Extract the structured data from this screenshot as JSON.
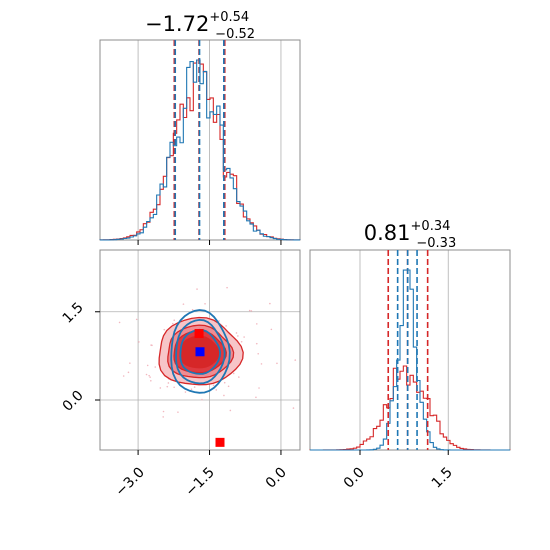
{
  "chart_data": [
    {
      "type": "histogram",
      "panel": "marginal-param-1",
      "title": {
        "median": "−1.72",
        "plus": "+0.54",
        "minus": "−0.52"
      },
      "xlim": [
        -3.8,
        0.4
      ],
      "grid": true,
      "series": [
        {
          "name": "",
          "color": "#d62728",
          "quantiles": [
            -2.24,
            -1.72,
            -1.18
          ]
        },
        {
          "name": "",
          "color": "#1f77b4",
          "quantiles": [
            -2.22,
            -1.71,
            -1.2
          ]
        }
      ]
    },
    {
      "type": "contour",
      "panel": "joint-param-1-param-2",
      "xlim": [
        -3.8,
        0.4
      ],
      "ylim": [
        -0.85,
        2.55
      ],
      "grid": true,
      "xticks": [
        "−3.0",
        "−1.5",
        "0.0"
      ],
      "yticks": [
        "0.0",
        "1.5"
      ],
      "series": [
        {
          "name": "",
          "color": "#d62728",
          "center": [
            -1.72,
            0.81
          ],
          "spread": [
            0.52,
            0.34
          ]
        },
        {
          "name": "",
          "color": "#1f77b4",
          "center": [
            -1.71,
            0.81
          ],
          "spread": [
            0.52,
            0.1
          ]
        }
      ],
      "markers": [
        {
          "color": "#ff0000",
          "x": -1.72,
          "y": 1.13
        },
        {
          "color": "#0000ff",
          "x": -1.7,
          "y": 0.82
        },
        {
          "color": "#ff0000",
          "x": -1.28,
          "y": -0.72
        }
      ]
    },
    {
      "type": "histogram",
      "panel": "marginal-param-2",
      "title": {
        "median": "0.81",
        "plus": "+0.34",
        "minus": "−0.33"
      },
      "xlim": [
        -0.85,
        2.55
      ],
      "grid": true,
      "xticks": [
        "0.0",
        "1.5"
      ],
      "series": [
        {
          "name": "",
          "color": "#d62728",
          "quantiles": [
            0.48,
            0.81,
            1.15
          ]
        },
        {
          "name": "",
          "color": "#1f77b4",
          "quantiles": [
            0.64,
            0.81,
            0.97
          ]
        }
      ]
    }
  ]
}
